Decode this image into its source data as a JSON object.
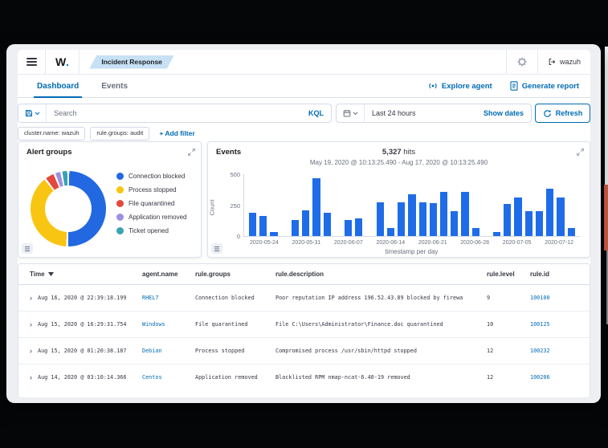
{
  "window": {
    "logo": "W",
    "logo_dot": ".",
    "module_badge": "Incident Response",
    "user": "wazuh"
  },
  "tabs": [
    {
      "label": "Dashboard",
      "active": true
    },
    {
      "label": "Events",
      "active": false
    }
  ],
  "header_actions": [
    {
      "label": "Explore agent"
    },
    {
      "label": "Generate report"
    }
  ],
  "query_bar": {
    "search_placeholder": "Search",
    "language": "KQL",
    "time_range": "Last 24 hours",
    "show_dates_label": "Show dates",
    "refresh_label": "Refresh",
    "filters": [
      "cluster.name: wazuh",
      "rule.groups: audit"
    ],
    "add_filter_label": "+ Add filter"
  },
  "panels": {
    "alert_groups": {
      "title": "Alert groups"
    },
    "events": {
      "title": "Events",
      "hits": "5,327",
      "hits_suffix": " hits",
      "date_range": "May 19, 2020 @ 10:13:25.490 - Aug 17, 2020 @ 10:13:25.490"
    }
  },
  "chart_data": [
    {
      "type": "pie",
      "title": "Alert groups",
      "donut": true,
      "legend_position": "right",
      "labels": [
        "Connection blocked",
        "Process stopped",
        "File quarantined",
        "Application removed",
        "Ticket opened"
      ],
      "values_pct": [
        50.5,
        39,
        4.5,
        3,
        3
      ],
      "colors": [
        "#2268e0",
        "#f9c513",
        "#e4483d",
        "#9e8fe3",
        "#38a3b2"
      ]
    },
    {
      "type": "bar",
      "title": "Events histogram",
      "xlabel": "timestamp per day",
      "ylabel": "Count",
      "ylim": [
        0,
        500
      ],
      "yticks": [
        0,
        250,
        500
      ],
      "bar_color": "#1f6ce8",
      "x_tick_labels": [
        "2020-05-24",
        "2020-05-31",
        "2020-06-07",
        "2020-06-14",
        "2020-06-21",
        "2020-06-28",
        "2020-07-05",
        "2020-07-12"
      ],
      "values": [
        190,
        160,
        35,
        0,
        130,
        210,
        470,
        190,
        0,
        130,
        145,
        0,
        275,
        65,
        275,
        335,
        275,
        265,
        360,
        200,
        360,
        65,
        0,
        35,
        260,
        315,
        200,
        200,
        385,
        315,
        65
      ]
    }
  ],
  "table": {
    "columns": [
      "Time",
      "agent.name",
      "rule.groups",
      "rule.description",
      "rule.level",
      "rule.id"
    ],
    "rows": [
      {
        "time": "Aug 16, 2020 @ 22:39:18.199",
        "agent": "RHEL7",
        "groups": "Connection blocked",
        "description": "Poor reputation IP address 196.52.43.89 blocked by firewall",
        "level": "9",
        "id": "100100"
      },
      {
        "time": "Aug 15, 2020 @ 16:29:31.754",
        "agent": "Windows",
        "groups": "File quarantined",
        "description": "File C:\\Users\\Administrator\\Finance.doc quarantined",
        "level": "10",
        "id": "100125"
      },
      {
        "time": "Aug 15, 2020 @ 01:20:38.187",
        "agent": "Debian",
        "groups": "Process stopped",
        "description": "Compromised process /usr/sbin/httpd stopped",
        "level": "12",
        "id": "100232"
      },
      {
        "time": "Aug 14, 2020 @ 03:10:14.366",
        "agent": "Centos",
        "groups": "Application removed",
        "description": "Blacklisted RPM nmap-ncat-6.40-19 removed",
        "level": "12",
        "id": "100206"
      }
    ]
  },
  "colors": {
    "accent": "#006bb4",
    "text": "#343741",
    "muted": "#69707d",
    "border": "#d3dae6",
    "badge_bg": "#c7e0f4",
    "edge_red": "#d9604a"
  }
}
